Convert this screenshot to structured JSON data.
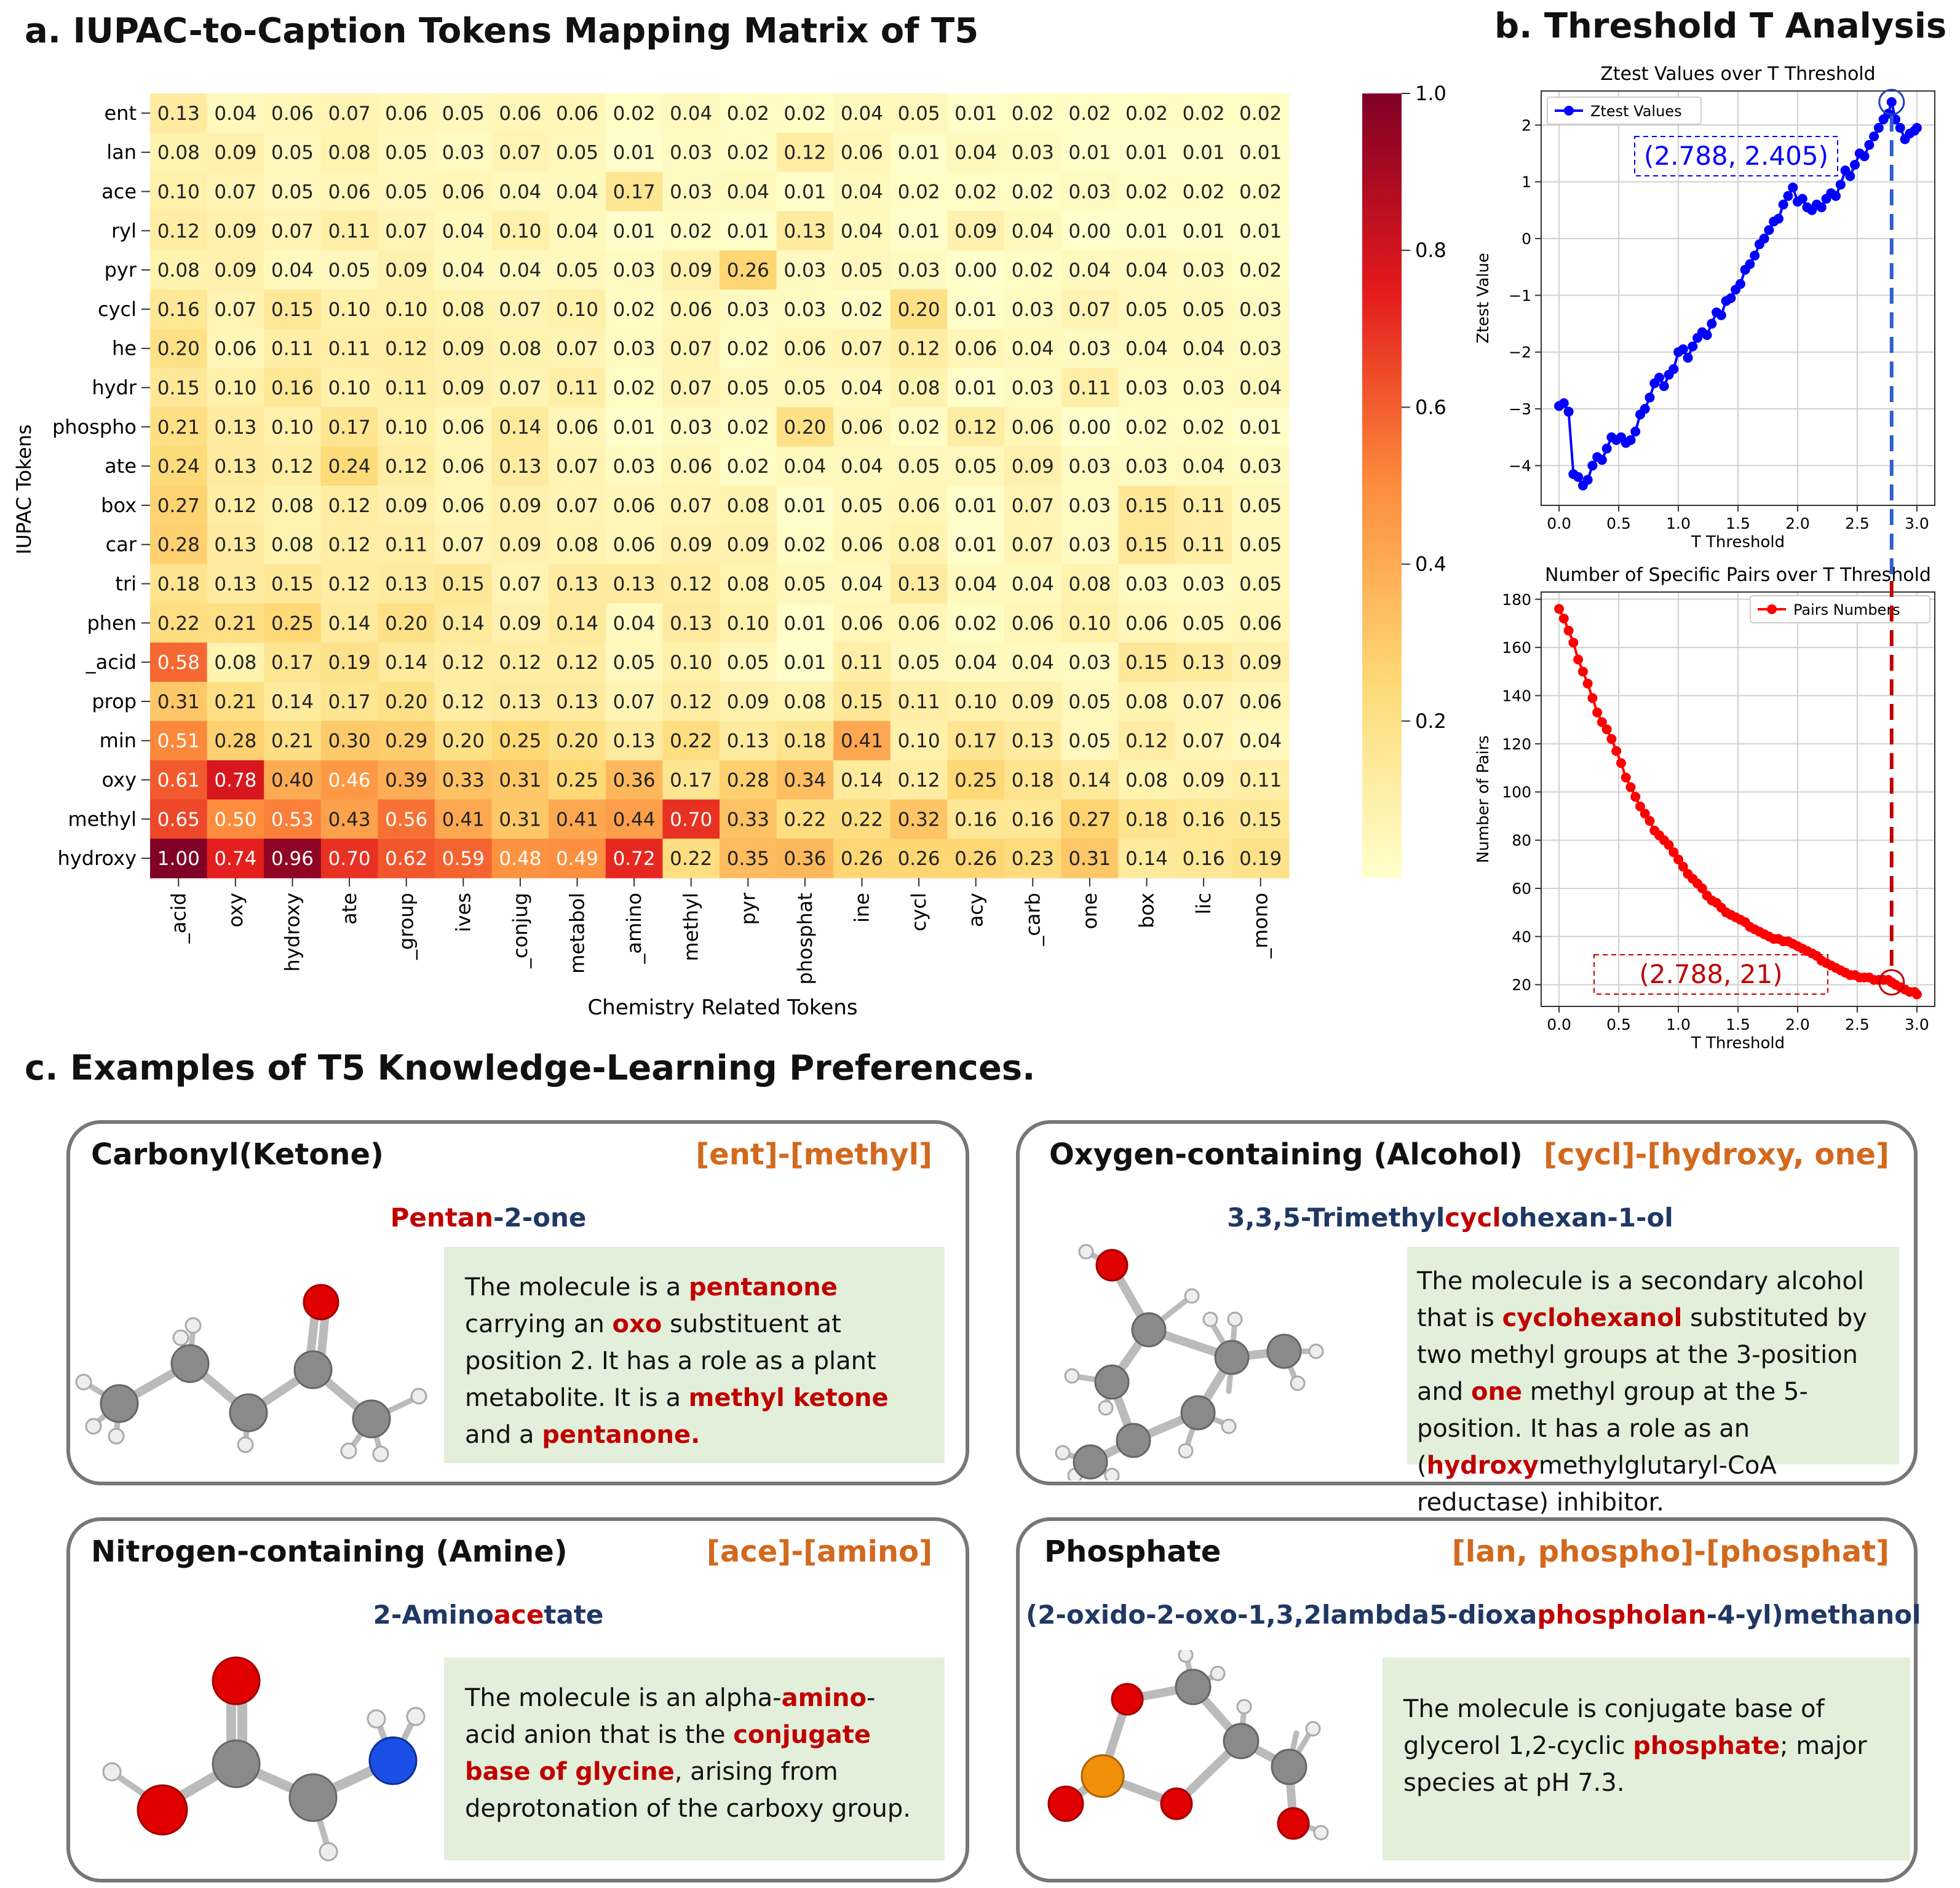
{
  "panel_a": {
    "title": "a.  IUPAC-to-Caption Tokens Mapping Matrix of T5",
    "chart_data": {
      "type": "heatmap",
      "xlabel": "Chemistry Related Tokens",
      "ylabel": "IUPAC Tokens",
      "x_tokens": [
        "_acid",
        "oxy",
        "hydroxy",
        "ate",
        "_group",
        "ives",
        "_conjug",
        "metabol",
        "_amino",
        "methyl",
        "pyr",
        "phosphat",
        "ine",
        "cycl",
        "acy",
        "_carb",
        "one",
        "box",
        "lic",
        "_mono"
      ],
      "y_tokens": [
        "ent",
        "lan",
        "ace",
        "ryl",
        "pyr",
        "cycl",
        "he",
        "hydr",
        "phospho",
        "ate",
        "box",
        "car",
        "tri",
        "phen",
        "_acid",
        "prop",
        "min",
        "oxy",
        "methyl",
        "hydroxy"
      ],
      "values": [
        [
          0.13,
          0.04,
          0.06,
          0.07,
          0.06,
          0.05,
          0.06,
          0.06,
          0.02,
          0.04,
          0.02,
          0.02,
          0.04,
          0.05,
          0.01,
          0.02,
          0.02,
          0.02,
          0.02,
          0.02
        ],
        [
          0.08,
          0.09,
          0.05,
          0.08,
          0.05,
          0.03,
          0.07,
          0.05,
          0.01,
          0.03,
          0.02,
          0.12,
          0.06,
          0.01,
          0.04,
          0.03,
          0.01,
          0.01,
          0.01,
          0.01
        ],
        [
          0.1,
          0.07,
          0.05,
          0.06,
          0.05,
          0.06,
          0.04,
          0.04,
          0.17,
          0.03,
          0.04,
          0.01,
          0.04,
          0.02,
          0.02,
          0.02,
          0.03,
          0.02,
          0.02,
          0.02
        ],
        [
          0.12,
          0.09,
          0.07,
          0.11,
          0.07,
          0.04,
          0.1,
          0.04,
          0.01,
          0.02,
          0.01,
          0.13,
          0.04,
          0.01,
          0.09,
          0.04,
          0.0,
          0.01,
          0.01,
          0.01
        ],
        [
          0.08,
          0.09,
          0.04,
          0.05,
          0.09,
          0.04,
          0.04,
          0.05,
          0.03,
          0.09,
          0.26,
          0.03,
          0.05,
          0.03,
          0.0,
          0.02,
          0.04,
          0.04,
          0.03,
          0.02
        ],
        [
          0.16,
          0.07,
          0.15,
          0.1,
          0.1,
          0.08,
          0.07,
          0.1,
          0.02,
          0.06,
          0.03,
          0.03,
          0.02,
          0.2,
          0.01,
          0.03,
          0.07,
          0.05,
          0.05,
          0.03
        ],
        [
          0.2,
          0.06,
          0.11,
          0.11,
          0.12,
          0.09,
          0.08,
          0.07,
          0.03,
          0.07,
          0.02,
          0.06,
          0.07,
          0.12,
          0.06,
          0.04,
          0.03,
          0.04,
          0.04,
          0.03
        ],
        [
          0.15,
          0.1,
          0.16,
          0.1,
          0.11,
          0.09,
          0.07,
          0.11,
          0.02,
          0.07,
          0.05,
          0.05,
          0.04,
          0.08,
          0.01,
          0.03,
          0.11,
          0.03,
          0.03,
          0.04
        ],
        [
          0.21,
          0.13,
          0.1,
          0.17,
          0.1,
          0.06,
          0.14,
          0.06,
          0.01,
          0.03,
          0.02,
          0.2,
          0.06,
          0.02,
          0.12,
          0.06,
          0.0,
          0.02,
          0.02,
          0.01
        ],
        [
          0.24,
          0.13,
          0.12,
          0.24,
          0.12,
          0.06,
          0.13,
          0.07,
          0.03,
          0.06,
          0.02,
          0.04,
          0.04,
          0.05,
          0.05,
          0.09,
          0.03,
          0.03,
          0.04,
          0.03
        ],
        [
          0.27,
          0.12,
          0.08,
          0.12,
          0.09,
          0.06,
          0.09,
          0.07,
          0.06,
          0.07,
          0.08,
          0.01,
          0.05,
          0.06,
          0.01,
          0.07,
          0.03,
          0.15,
          0.11,
          0.05
        ],
        [
          0.28,
          0.13,
          0.08,
          0.12,
          0.11,
          0.07,
          0.09,
          0.08,
          0.06,
          0.09,
          0.09,
          0.02,
          0.06,
          0.08,
          0.01,
          0.07,
          0.03,
          0.15,
          0.11,
          0.05
        ],
        [
          0.18,
          0.13,
          0.15,
          0.12,
          0.13,
          0.15,
          0.07,
          0.13,
          0.13,
          0.12,
          0.08,
          0.05,
          0.04,
          0.13,
          0.04,
          0.04,
          0.08,
          0.03,
          0.03,
          0.05
        ],
        [
          0.22,
          0.21,
          0.25,
          0.14,
          0.2,
          0.14,
          0.09,
          0.14,
          0.04,
          0.13,
          0.1,
          0.01,
          0.06,
          0.06,
          0.02,
          0.06,
          0.1,
          0.06,
          0.05,
          0.06
        ],
        [
          0.58,
          0.08,
          0.17,
          0.19,
          0.14,
          0.12,
          0.12,
          0.12,
          0.05,
          0.1,
          0.05,
          0.01,
          0.11,
          0.05,
          0.04,
          0.04,
          0.03,
          0.15,
          0.13,
          0.09
        ],
        [
          0.31,
          0.21,
          0.14,
          0.17,
          0.2,
          0.12,
          0.13,
          0.13,
          0.07,
          0.12,
          0.09,
          0.08,
          0.15,
          0.11,
          0.1,
          0.09,
          0.05,
          0.08,
          0.07,
          0.06
        ],
        [
          0.51,
          0.28,
          0.21,
          0.3,
          0.29,
          0.2,
          0.25,
          0.2,
          0.13,
          0.22,
          0.13,
          0.18,
          0.41,
          0.1,
          0.17,
          0.13,
          0.05,
          0.12,
          0.07,
          0.04
        ],
        [
          0.61,
          0.78,
          0.4,
          0.46,
          0.39,
          0.33,
          0.31,
          0.25,
          0.36,
          0.17,
          0.28,
          0.34,
          0.14,
          0.12,
          0.25,
          0.18,
          0.14,
          0.08,
          0.09,
          0.11
        ],
        [
          0.65,
          0.5,
          0.53,
          0.43,
          0.56,
          0.41,
          0.31,
          0.41,
          0.44,
          0.7,
          0.33,
          0.22,
          0.22,
          0.32,
          0.16,
          0.16,
          0.27,
          0.18,
          0.16,
          0.15
        ],
        [
          1.0,
          0.74,
          0.96,
          0.7,
          0.62,
          0.59,
          0.48,
          0.49,
          0.72,
          0.22,
          0.35,
          0.36,
          0.26,
          0.26,
          0.26,
          0.23,
          0.31,
          0.14,
          0.16,
          0.19
        ]
      ],
      "colorbar_ticks": [
        "0.2",
        "0.4",
        "0.6",
        "0.8",
        "1.0"
      ],
      "colormap": [
        "#ffffcc",
        "#fed976",
        "#fd8d3c",
        "#e31a1c",
        "#800026"
      ]
    }
  },
  "panel_b": {
    "title": "b.  Threshold T Analysis",
    "ztest": {
      "type": "line",
      "title": "Ztest Values over T Threshold",
      "xlabel": "T Threshold",
      "ylabel": "Ztest Value",
      "legend": "Ztest Values",
      "annotation": "(2.788, 2.405)",
      "color": "#0000ff",
      "xlim": [
        -0.15,
        3.15
      ],
      "ylim": [
        -4.7,
        2.6
      ],
      "xticks": [
        "0.0",
        "0.5",
        "1.0",
        "1.5",
        "2.0",
        "2.5",
        "3.0"
      ],
      "yticks": [
        "−4",
        "−3",
        "−2",
        "−1",
        "0",
        "1",
        "2"
      ],
      "marker_x": 2.788,
      "marker_y": 2.405,
      "x": [
        0.0,
        0.04,
        0.08,
        0.12,
        0.16,
        0.2,
        0.24,
        0.28,
        0.32,
        0.36,
        0.4,
        0.44,
        0.48,
        0.52,
        0.56,
        0.6,
        0.64,
        0.68,
        0.72,
        0.76,
        0.8,
        0.84,
        0.88,
        0.92,
        0.96,
        1.0,
        1.04,
        1.08,
        1.12,
        1.16,
        1.2,
        1.24,
        1.28,
        1.32,
        1.36,
        1.4,
        1.44,
        1.48,
        1.52,
        1.56,
        1.6,
        1.64,
        1.68,
        1.72,
        1.76,
        1.8,
        1.84,
        1.88,
        1.92,
        1.96,
        2.0,
        2.04,
        2.08,
        2.12,
        2.16,
        2.2,
        2.24,
        2.28,
        2.32,
        2.36,
        2.4,
        2.44,
        2.48,
        2.52,
        2.56,
        2.6,
        2.64,
        2.68,
        2.72,
        2.76,
        2.788,
        2.82,
        2.86,
        2.9,
        2.94,
        2.98,
        3.0
      ],
      "y": [
        -2.95,
        -2.9,
        -3.05,
        -4.15,
        -4.2,
        -4.35,
        -4.25,
        -4.0,
        -3.85,
        -3.9,
        -3.7,
        -3.5,
        -3.55,
        -3.5,
        -3.6,
        -3.55,
        -3.4,
        -3.1,
        -3.0,
        -2.8,
        -2.55,
        -2.45,
        -2.6,
        -2.4,
        -2.3,
        -2.0,
        -1.95,
        -2.1,
        -1.9,
        -1.75,
        -1.65,
        -1.7,
        -1.5,
        -1.3,
        -1.35,
        -1.1,
        -1.05,
        -0.9,
        -0.8,
        -0.55,
        -0.45,
        -0.3,
        -0.1,
        0.0,
        0.15,
        0.3,
        0.35,
        0.6,
        0.75,
        0.9,
        0.65,
        0.7,
        0.55,
        0.5,
        0.6,
        0.55,
        0.7,
        0.8,
        0.75,
        0.95,
        1.2,
        1.1,
        1.3,
        1.5,
        1.45,
        1.65,
        1.8,
        1.95,
        2.1,
        2.2,
        2.405,
        2.1,
        1.95,
        1.75,
        1.85,
        1.9,
        1.95
      ]
    },
    "pairs": {
      "type": "line",
      "title": "Number of Specific Pairs over T Threshold",
      "xlabel": "T Threshold",
      "ylabel": "Number of Pairs",
      "legend": "Pairs Numbers",
      "annotation": "(2.788, 21)",
      "color": "#ff0000",
      "xlim": [
        -0.15,
        3.15
      ],
      "ylim": [
        11,
        183
      ],
      "xticks": [
        "0.0",
        "0.5",
        "1.0",
        "1.5",
        "2.0",
        "2.5",
        "3.0"
      ],
      "yticks": [
        "20",
        "40",
        "60",
        "80",
        "100",
        "120",
        "140",
        "160",
        "180"
      ],
      "marker_x": 2.788,
      "marker_y": 21,
      "x": [
        0.0,
        0.04,
        0.08,
        0.12,
        0.16,
        0.2,
        0.24,
        0.28,
        0.32,
        0.36,
        0.4,
        0.44,
        0.48,
        0.52,
        0.56,
        0.6,
        0.64,
        0.68,
        0.72,
        0.76,
        0.8,
        0.84,
        0.88,
        0.92,
        0.96,
        1.0,
        1.04,
        1.08,
        1.12,
        1.16,
        1.2,
        1.24,
        1.28,
        1.32,
        1.36,
        1.4,
        1.44,
        1.48,
        1.52,
        1.56,
        1.6,
        1.64,
        1.68,
        1.72,
        1.76,
        1.8,
        1.84,
        1.88,
        1.92,
        1.96,
        2.0,
        2.04,
        2.08,
        2.12,
        2.16,
        2.2,
        2.24,
        2.28,
        2.32,
        2.36,
        2.4,
        2.44,
        2.48,
        2.52,
        2.56,
        2.6,
        2.64,
        2.68,
        2.72,
        2.76,
        2.788,
        2.82,
        2.86,
        2.9,
        2.94,
        2.98,
        3.0
      ],
      "y": [
        176,
        172,
        167,
        162,
        155,
        150,
        145,
        139,
        133,
        129,
        126,
        122,
        117,
        112,
        106,
        102,
        98,
        94,
        91,
        88,
        84,
        82,
        80,
        78,
        75,
        72,
        69,
        66,
        64,
        62,
        60,
        57,
        55,
        54,
        52,
        50,
        49,
        48,
        47,
        46,
        44,
        43,
        42,
        41,
        40,
        39,
        39,
        38,
        38,
        37,
        36,
        35,
        34,
        33,
        32,
        30,
        29,
        28,
        27,
        26,
        25,
        24,
        24,
        23,
        23,
        23,
        22,
        22,
        22,
        22,
        21,
        20,
        19,
        18,
        17,
        17,
        16
      ]
    }
  },
  "panel_c": {
    "title": "c.  Examples of T5 Knowledge-Learning Preferences.",
    "cards": [
      {
        "title": "Carbonyl(Ketone)",
        "tag": "[ent]-[methyl]",
        "name": [
          {
            "t": "Pentan",
            "hl": true
          },
          {
            "t": "-2-one",
            "hl": false
          }
        ],
        "desc": [
          {
            "t": "The molecule is a ",
            "hl": false
          },
          {
            "t": "pentanone",
            "hl": true
          },
          {
            "t": " carrying an ",
            "hl": false
          },
          {
            "t": "oxo",
            "hl": true
          },
          {
            "t": " substituent at position 2. It has a role as a plant metabolite. It is a ",
            "hl": false
          },
          {
            "t": "methyl ketone",
            "hl": true
          },
          {
            "t": " and a ",
            "hl": false
          },
          {
            "t": "pentanone.",
            "hl": true
          }
        ]
      },
      {
        "title": "Oxygen-containing (Alcohol)",
        "tag": "[cycl]-[hydroxy, one]",
        "name": [
          {
            "t": "3,3,5-Trimethyl",
            "hl": false
          },
          {
            "t": "cycl",
            "hl": true
          },
          {
            "t": "ohexan-1-ol",
            "hl": false
          }
        ],
        "desc": [
          {
            "t": "The molecule is a secondary alcohol that is ",
            "hl": false
          },
          {
            "t": "cyclohexanol",
            "hl": true
          },
          {
            "t": " substituted by two methyl groups at the 3-position and ",
            "hl": false
          },
          {
            "t": "one",
            "hl": true
          },
          {
            "t": " methyl group at the 5-position. It has a role as an (",
            "hl": false
          },
          {
            "t": "hydroxy",
            "hl": true
          },
          {
            "t": "methylglutaryl-CoA reductase) inhibitor.",
            "hl": false
          }
        ]
      },
      {
        "title": "Nitrogen-containing (Amine)",
        "tag": "[ace]-[amino]",
        "name": [
          {
            "t": "2-Amino",
            "hl": false
          },
          {
            "t": "ace",
            "hl": true
          },
          {
            "t": "tate",
            "hl": false
          }
        ],
        "desc": [
          {
            "t": "The molecule is an alpha-",
            "hl": false
          },
          {
            "t": "amino",
            "hl": true
          },
          {
            "t": "-acid anion that is the ",
            "hl": false
          },
          {
            "t": "conjugate base of glycine",
            "hl": true
          },
          {
            "t": ", arising from deprotonation of the carboxy group.",
            "hl": false
          }
        ]
      },
      {
        "title": "Phosphate",
        "tag": "[lan, phospho]-[phosphat]",
        "name": [
          {
            "t": "(2-oxido-2-oxo-1,3,2lambda5-dioxa",
            "hl": false
          },
          {
            "t": "phospholan",
            "hl": true
          },
          {
            "t": "-4-yl)methanol",
            "hl": false
          }
        ],
        "desc": [
          {
            "t": "The molecule is conjugate base of glycerol 1,2-cyclic ",
            "hl": false
          },
          {
            "t": "phosphate",
            "hl": true
          },
          {
            "t": "; major species at pH 7.3.",
            "hl": false
          }
        ]
      }
    ]
  }
}
